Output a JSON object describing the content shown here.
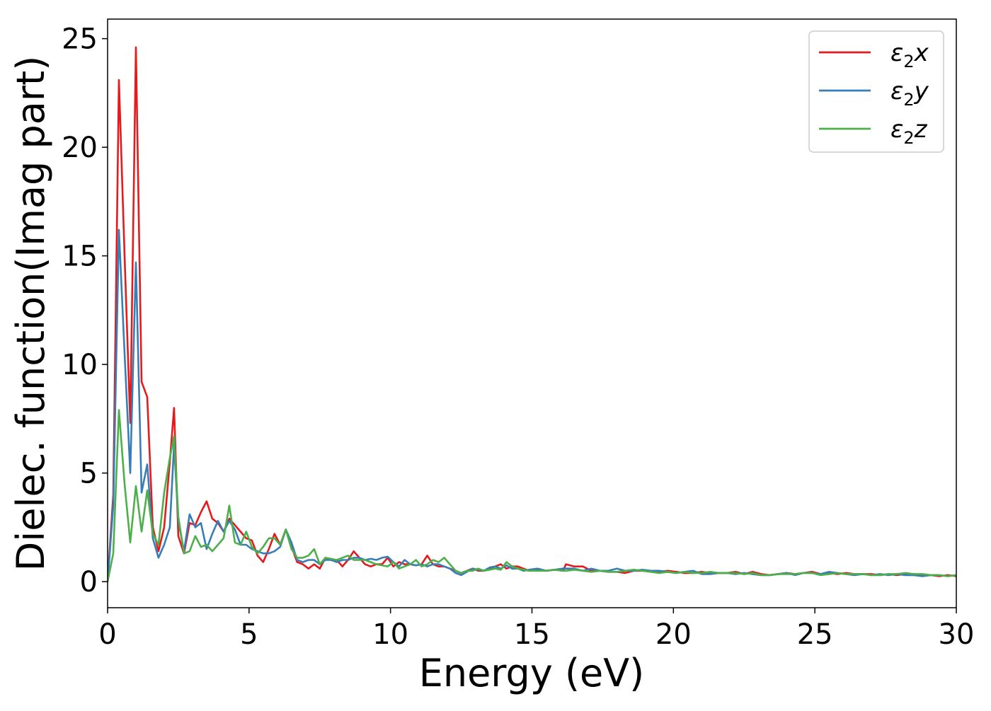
{
  "chart_data": {
    "type": "line",
    "xlabel": "Energy (eV)",
    "ylabel": "Dielec. function(Imag part)",
    "xlim": [
      0,
      30
    ],
    "ylim": [
      -1.2,
      25.9
    ],
    "xticks": [
      0,
      5,
      10,
      15,
      20,
      25,
      30
    ],
    "yticks": [
      0,
      5,
      10,
      15,
      20,
      25
    ],
    "grid": false,
    "legend_position": "top-right",
    "series": [
      {
        "name": "ε2x",
        "legend_base": "ε",
        "legend_sub": "2",
        "legend_suffix": "x",
        "color": "#e41a1c",
        "x": [
          0,
          0.2,
          0.4,
          0.6,
          0.8,
          1.0,
          1.2,
          1.4,
          1.6,
          1.8,
          2.0,
          2.2,
          2.35,
          2.5,
          2.7,
          2.9,
          3.1,
          3.3,
          3.5,
          3.7,
          3.9,
          4.1,
          4.3,
          4.5,
          4.7,
          4.9,
          5.1,
          5.3,
          5.5,
          5.7,
          5.9,
          6.1,
          6.3,
          6.5,
          6.7,
          6.9,
          7.1,
          7.3,
          7.5,
          7.7,
          7.9,
          8.1,
          8.3,
          8.5,
          8.7,
          8.9,
          9.1,
          9.3,
          9.5,
          9.7,
          9.9,
          10.1,
          10.3,
          10.5,
          10.7,
          10.9,
          11.1,
          11.3,
          11.5,
          11.7,
          11.9,
          12.1,
          12.3,
          12.5,
          12.7,
          12.9,
          13.1,
          13.3,
          13.5,
          13.7,
          13.9,
          14.1,
          14.3,
          14.5,
          14.7,
          14.9,
          15.2,
          15.5,
          15.8,
          16.1,
          16.2,
          16.5,
          16.8,
          17.1,
          17.4,
          17.7,
          18.0,
          18.3,
          18.6,
          18.9,
          19.2,
          19.5,
          19.8,
          20.1,
          20.4,
          20.7,
          21.0,
          21.3,
          21.6,
          21.9,
          22.2,
          22.5,
          22.8,
          23.1,
          23.4,
          23.7,
          24.0,
          24.3,
          24.6,
          24.9,
          25.2,
          25.5,
          25.8,
          26.1,
          26.4,
          26.7,
          27.0,
          27.3,
          27.6,
          27.9,
          28.2,
          28.5,
          28.8,
          29.1,
          29.4,
          29.7,
          30.0
        ],
        "y": [
          0.0,
          4.0,
          23.1,
          15.0,
          7.3,
          24.6,
          9.2,
          8.5,
          2.5,
          1.4,
          2.5,
          5.5,
          8.0,
          2.1,
          1.3,
          2.7,
          2.6,
          3.2,
          3.7,
          2.9,
          2.7,
          2.3,
          2.9,
          2.6,
          2.3,
          2.0,
          1.9,
          1.2,
          0.9,
          1.5,
          2.2,
          1.7,
          2.4,
          1.6,
          0.9,
          0.8,
          0.6,
          0.8,
          0.6,
          1.1,
          1.0,
          1.0,
          0.7,
          1.0,
          1.4,
          1.1,
          0.8,
          0.7,
          0.8,
          0.8,
          1.1,
          0.7,
          0.9,
          0.8,
          0.8,
          0.75,
          0.8,
          1.2,
          0.8,
          0.7,
          0.7,
          0.6,
          0.5,
          0.4,
          0.5,
          0.6,
          0.5,
          0.5,
          0.6,
          0.7,
          0.8,
          0.6,
          0.7,
          0.7,
          0.6,
          0.5,
          0.55,
          0.5,
          0.55,
          0.5,
          0.8,
          0.7,
          0.7,
          0.5,
          0.5,
          0.45,
          0.45,
          0.4,
          0.5,
          0.5,
          0.5,
          0.45,
          0.5,
          0.45,
          0.4,
          0.4,
          0.45,
          0.4,
          0.4,
          0.4,
          0.45,
          0.35,
          0.45,
          0.35,
          0.3,
          0.35,
          0.4,
          0.35,
          0.4,
          0.45,
          0.35,
          0.4,
          0.35,
          0.4,
          0.35,
          0.35,
          0.35,
          0.3,
          0.35,
          0.3,
          0.35,
          0.35,
          0.3,
          0.3,
          0.25,
          0.3,
          0.25
        ]
      },
      {
        "name": "ε2y",
        "legend_base": "ε",
        "legend_sub": "2",
        "legend_suffix": "y",
        "color": "#377eb8",
        "x": [
          0,
          0.2,
          0.4,
          0.6,
          0.8,
          1.0,
          1.2,
          1.4,
          1.6,
          1.8,
          2.0,
          2.2,
          2.35,
          2.5,
          2.7,
          2.9,
          3.1,
          3.3,
          3.5,
          3.7,
          3.9,
          4.1,
          4.3,
          4.5,
          4.7,
          4.9,
          5.1,
          5.3,
          5.5,
          5.7,
          5.9,
          6.1,
          6.3,
          6.5,
          6.7,
          6.9,
          7.1,
          7.3,
          7.5,
          7.7,
          7.9,
          8.1,
          8.3,
          8.5,
          8.7,
          8.9,
          9.1,
          9.3,
          9.5,
          9.7,
          9.9,
          10.1,
          10.3,
          10.5,
          10.7,
          10.9,
          11.1,
          11.3,
          11.5,
          11.7,
          11.9,
          12.1,
          12.3,
          12.5,
          12.7,
          12.9,
          13.1,
          13.3,
          13.5,
          13.7,
          13.9,
          14.1,
          14.3,
          14.5,
          14.7,
          14.9,
          15.2,
          15.5,
          15.8,
          16.1,
          16.2,
          16.5,
          16.8,
          17.1,
          17.4,
          17.7,
          18.0,
          18.3,
          18.6,
          18.9,
          19.2,
          19.5,
          19.8,
          20.1,
          20.4,
          20.7,
          21.0,
          21.3,
          21.6,
          21.9,
          22.2,
          22.5,
          22.8,
          23.1,
          23.4,
          23.7,
          24.0,
          24.3,
          24.6,
          24.9,
          25.2,
          25.5,
          25.8,
          26.1,
          26.4,
          26.7,
          27.0,
          27.3,
          27.6,
          27.9,
          28.2,
          28.5,
          28.8,
          29.1,
          29.4,
          29.7,
          30.0
        ],
        "y": [
          0.0,
          3.5,
          16.2,
          10.5,
          5.0,
          14.7,
          4.1,
          5.4,
          2.0,
          1.1,
          1.7,
          2.5,
          6.3,
          2.8,
          1.4,
          3.1,
          2.5,
          2.7,
          1.5,
          2.2,
          2.8,
          2.3,
          2.8,
          2.4,
          1.7,
          1.7,
          1.5,
          1.4,
          1.3,
          1.3,
          1.4,
          1.6,
          2.4,
          1.8,
          1.0,
          0.9,
          1.0,
          1.0,
          0.8,
          1.0,
          1.0,
          0.9,
          1.0,
          1.0,
          1.1,
          1.1,
          1.0,
          1.05,
          1.0,
          1.1,
          1.15,
          0.9,
          0.7,
          1.0,
          0.8,
          0.75,
          0.8,
          0.7,
          0.8,
          0.8,
          0.7,
          0.6,
          0.4,
          0.3,
          0.45,
          0.6,
          0.55,
          0.5,
          0.65,
          0.7,
          0.6,
          0.75,
          0.6,
          0.6,
          0.5,
          0.55,
          0.6,
          0.5,
          0.55,
          0.6,
          0.6,
          0.6,
          0.5,
          0.6,
          0.5,
          0.5,
          0.6,
          0.5,
          0.5,
          0.55,
          0.5,
          0.5,
          0.45,
          0.4,
          0.45,
          0.5,
          0.35,
          0.35,
          0.4,
          0.4,
          0.35,
          0.4,
          0.35,
          0.3,
          0.3,
          0.35,
          0.4,
          0.3,
          0.4,
          0.4,
          0.35,
          0.45,
          0.4,
          0.35,
          0.3,
          0.35,
          0.3,
          0.35,
          0.3,
          0.35,
          0.3,
          0.3,
          0.25,
          0.3,
          0.3,
          0.25,
          0.3
        ]
      },
      {
        "name": "ε2z",
        "legend_base": "ε",
        "legend_sub": "2",
        "legend_suffix": "z",
        "color": "#4daf4a",
        "x": [
          0,
          0.2,
          0.4,
          0.6,
          0.8,
          1.0,
          1.2,
          1.4,
          1.6,
          1.8,
          2.0,
          2.2,
          2.35,
          2.5,
          2.7,
          2.9,
          3.1,
          3.3,
          3.5,
          3.7,
          3.9,
          4.1,
          4.3,
          4.5,
          4.7,
          4.9,
          5.1,
          5.3,
          5.5,
          5.7,
          5.9,
          6.1,
          6.3,
          6.5,
          6.7,
          6.9,
          7.1,
          7.3,
          7.5,
          7.7,
          7.9,
          8.1,
          8.3,
          8.5,
          8.7,
          8.9,
          9.1,
          9.3,
          9.5,
          9.7,
          9.9,
          10.1,
          10.3,
          10.5,
          10.7,
          10.9,
          11.1,
          11.3,
          11.5,
          11.7,
          11.9,
          12.1,
          12.3,
          12.5,
          12.7,
          12.9,
          13.1,
          13.3,
          13.5,
          13.7,
          13.9,
          14.1,
          14.3,
          14.5,
          14.7,
          14.9,
          15.2,
          15.5,
          15.8,
          16.1,
          16.2,
          16.5,
          16.8,
          17.1,
          17.4,
          17.7,
          18.0,
          18.3,
          18.6,
          18.9,
          19.2,
          19.5,
          19.8,
          20.1,
          20.4,
          20.7,
          21.0,
          21.3,
          21.6,
          21.9,
          22.2,
          22.5,
          22.8,
          23.1,
          23.4,
          23.7,
          24.0,
          24.3,
          24.6,
          24.9,
          25.2,
          25.5,
          25.8,
          26.1,
          26.4,
          26.7,
          27.0,
          27.3,
          27.6,
          27.9,
          28.2,
          28.5,
          28.8,
          29.1,
          29.4,
          29.7,
          30.0
        ],
        "y": [
          0.0,
          1.3,
          7.9,
          4.5,
          1.8,
          4.4,
          2.3,
          4.2,
          2.2,
          1.7,
          4.1,
          5.7,
          6.7,
          3.0,
          1.3,
          1.4,
          2.1,
          1.6,
          1.7,
          1.4,
          1.7,
          2.0,
          3.5,
          1.8,
          1.7,
          2.3,
          1.6,
          1.3,
          1.6,
          2.0,
          2.0,
          1.7,
          2.4,
          1.5,
          1.1,
          1.1,
          1.2,
          1.5,
          0.8,
          1.1,
          1.05,
          1.0,
          1.1,
          1.2,
          1.0,
          1.0,
          1.0,
          0.9,
          0.8,
          0.75,
          0.7,
          0.9,
          0.6,
          0.7,
          0.8,
          1.0,
          0.7,
          0.8,
          1.0,
          0.9,
          1.1,
          0.8,
          0.5,
          0.4,
          0.5,
          0.5,
          0.6,
          0.5,
          0.55,
          0.6,
          0.55,
          0.9,
          0.7,
          0.6,
          0.55,
          0.5,
          0.5,
          0.5,
          0.55,
          0.5,
          0.5,
          0.55,
          0.5,
          0.45,
          0.5,
          0.45,
          0.45,
          0.5,
          0.55,
          0.5,
          0.45,
          0.4,
          0.45,
          0.4,
          0.45,
          0.4,
          0.4,
          0.45,
          0.4,
          0.4,
          0.4,
          0.35,
          0.4,
          0.3,
          0.3,
          0.35,
          0.35,
          0.35,
          0.4,
          0.4,
          0.3,
          0.35,
          0.4,
          0.35,
          0.35,
          0.35,
          0.3,
          0.3,
          0.35,
          0.35,
          0.4,
          0.35,
          0.35,
          0.3,
          0.3,
          0.25,
          0.3
        ]
      }
    ]
  }
}
